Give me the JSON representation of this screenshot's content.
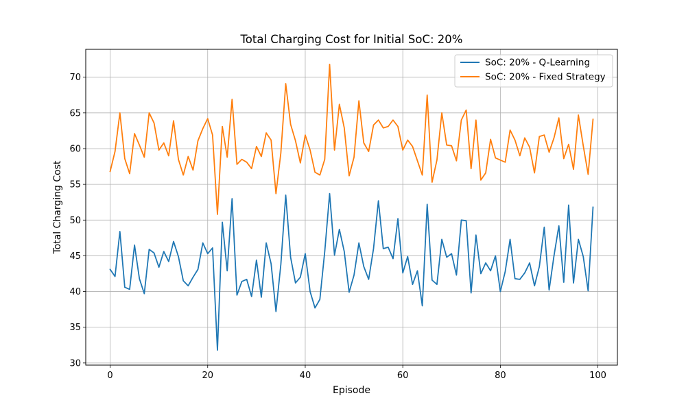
{
  "chart_data": {
    "type": "line",
    "title": "Total Charging Cost for Initial SoC: 20%",
    "xlabel": "Episode",
    "ylabel": "Total Charging Cost",
    "xlim": [
      -5,
      104
    ],
    "ylim": [
      29.7,
      73.9
    ],
    "xticks": [
      0,
      20,
      40,
      60,
      80,
      100
    ],
    "yticks": [
      30,
      35,
      40,
      45,
      50,
      55,
      60,
      65,
      70
    ],
    "grid": true,
    "legend_position": "top-right",
    "series": [
      {
        "name": "SoC: 20% - Q-Learning",
        "color": "#1f77b4",
        "x": [
          0,
          1,
          2,
          3,
          4,
          5,
          6,
          7,
          8,
          9,
          10,
          11,
          12,
          13,
          14,
          15,
          16,
          17,
          18,
          19,
          20,
          21,
          22,
          23,
          24,
          25,
          26,
          27,
          28,
          29,
          30,
          31,
          32,
          33,
          34,
          35,
          36,
          37,
          38,
          39,
          40,
          41,
          42,
          43,
          44,
          45,
          46,
          47,
          48,
          49,
          50,
          51,
          52,
          53,
          54,
          55,
          56,
          57,
          58,
          59,
          60,
          61,
          62,
          63,
          64,
          65,
          66,
          67,
          68,
          69,
          70,
          71,
          72,
          73,
          74,
          75,
          76,
          77,
          78,
          79,
          80,
          81,
          82,
          83,
          84,
          85,
          86,
          87,
          88,
          89,
          90,
          91,
          92,
          93,
          94,
          95,
          96,
          97,
          98,
          99
        ],
        "y": [
          43.1,
          42.1,
          48.4,
          40.6,
          40.3,
          46.5,
          41.8,
          39.7,
          45.9,
          45.4,
          43.4,
          45.6,
          44.2,
          47.0,
          44.9,
          41.5,
          40.8,
          42.0,
          43.1,
          46.8,
          45.3,
          46.1,
          31.8,
          49.7,
          42.9,
          53.0,
          39.5,
          41.4,
          41.7,
          39.3,
          44.4,
          39.2,
          46.8,
          43.9,
          37.2,
          43.8,
          53.5,
          44.8,
          41.2,
          42.0,
          45.3,
          40.0,
          37.7,
          38.9,
          45.6,
          53.7,
          45.1,
          48.7,
          45.6,
          39.9,
          42.3,
          46.8,
          43.5,
          41.7,
          46.0,
          52.7,
          46.0,
          46.2,
          44.6,
          50.2,
          42.6,
          44.9,
          41.0,
          42.9,
          38.0,
          52.2,
          41.6,
          41.0,
          47.3,
          44.8,
          45.3,
          42.3,
          50.0,
          49.9,
          39.8,
          47.9,
          42.5,
          44.0,
          42.9,
          45.0,
          40.0,
          42.8,
          47.3,
          41.8,
          41.7,
          42.6,
          44.0,
          40.8,
          43.5,
          49.0,
          40.2,
          45.0,
          49.2,
          41.3,
          52.1,
          41.2,
          47.3,
          44.9,
          40.1,
          51.8
        ]
      },
      {
        "name": "SoC: 20% - Fixed Strategy",
        "color": "#ff7f0e",
        "x": [
          0,
          1,
          2,
          3,
          4,
          5,
          6,
          7,
          8,
          9,
          10,
          11,
          12,
          13,
          14,
          15,
          16,
          17,
          18,
          19,
          20,
          21,
          22,
          23,
          24,
          25,
          26,
          27,
          28,
          29,
          30,
          31,
          32,
          33,
          34,
          35,
          36,
          37,
          38,
          39,
          40,
          41,
          42,
          43,
          44,
          45,
          46,
          47,
          48,
          49,
          50,
          51,
          52,
          53,
          54,
          55,
          56,
          57,
          58,
          59,
          60,
          61,
          62,
          63,
          64,
          65,
          66,
          67,
          68,
          69,
          70,
          71,
          72,
          73,
          74,
          75,
          76,
          77,
          78,
          79,
          80,
          81,
          82,
          83,
          84,
          85,
          86,
          87,
          88,
          89,
          90,
          91,
          92,
          93,
          94,
          95,
          96,
          97,
          98,
          99
        ],
        "y": [
          56.8,
          59.6,
          65.0,
          58.6,
          56.5,
          62.1,
          60.5,
          58.8,
          65.0,
          63.6,
          59.8,
          60.8,
          59.0,
          63.9,
          58.5,
          56.3,
          58.9,
          57.0,
          61.1,
          62.8,
          64.2,
          61.9,
          50.8,
          63.1,
          58.8,
          66.9,
          57.8,
          58.5,
          58.1,
          57.2,
          60.3,
          58.9,
          62.2,
          61.2,
          53.7,
          59.4,
          69.1,
          63.4,
          61.1,
          58.0,
          61.9,
          59.8,
          56.7,
          56.3,
          58.5,
          71.8,
          59.8,
          66.2,
          62.9,
          56.2,
          58.8,
          66.7,
          60.8,
          59.6,
          63.3,
          64.0,
          62.9,
          63.1,
          64.0,
          63.1,
          59.8,
          61.2,
          60.3,
          58.3,
          56.3,
          67.5,
          55.3,
          58.4,
          65.0,
          60.5,
          60.4,
          58.3,
          64.0,
          65.4,
          57.2,
          64.0,
          55.6,
          56.6,
          61.3,
          58.7,
          58.4,
          58.1,
          62.6,
          61.2,
          59.0,
          61.5,
          60.2,
          56.6,
          61.7,
          61.9,
          59.5,
          61.5,
          64.3,
          58.6,
          60.6,
          57.1,
          64.7,
          60.4,
          56.4,
          64.1
        ]
      }
    ]
  }
}
